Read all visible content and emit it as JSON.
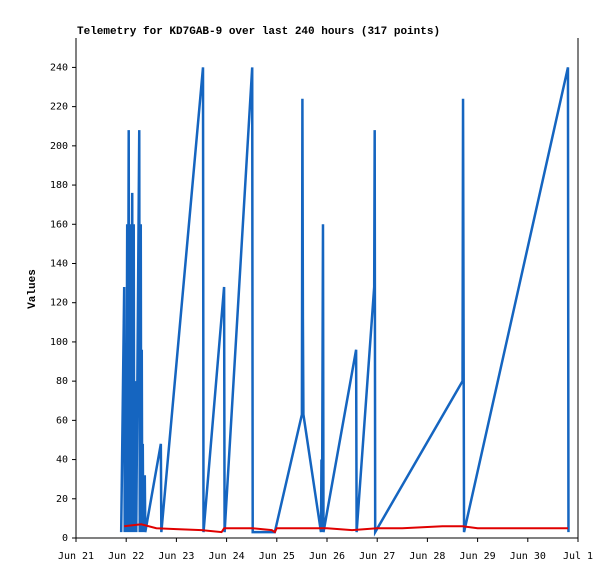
{
  "chart_data": {
    "type": "line",
    "title": "Telemetry for KD7GAB-9 over last 240 hours (317 points)",
    "y_label": "Values",
    "xlim": [
      0,
      10
    ],
    "xticks": [
      {
        "value": 0,
        "label": "Jun 21"
      },
      {
        "value": 1,
        "label": "Jun 22"
      },
      {
        "value": 2,
        "label": "Jun 23"
      },
      {
        "value": 3,
        "label": "Jun 24"
      },
      {
        "value": 4,
        "label": "Jun 25"
      },
      {
        "value": 5,
        "label": "Jun 26"
      },
      {
        "value": 6,
        "label": "Jun 27"
      },
      {
        "value": 7,
        "label": "Jun 28"
      },
      {
        "value": 8,
        "label": "Jun 29"
      },
      {
        "value": 9,
        "label": "Jun 30"
      },
      {
        "value": 10,
        "label": "Jul 1"
      }
    ],
    "ylim": [
      0,
      255
    ],
    "yticks": [
      0,
      20,
      40,
      60,
      80,
      100,
      120,
      140,
      160,
      180,
      200,
      220,
      240
    ],
    "series": [
      {
        "color": "#1565c0",
        "x": [
          0.9,
          0.96,
          0.97,
          0.99,
          1.0,
          1.02,
          1.03,
          1.05,
          1.06,
          1.09,
          1.1,
          1.12,
          1.13,
          1.15,
          1.16,
          1.19,
          1.2,
          1.26,
          1.27,
          1.29,
          1.3,
          1.31,
          1.32,
          1.33,
          1.34,
          1.37,
          1.38,
          1.69,
          1.7,
          2.53,
          2.54,
          2.95,
          2.96,
          3.51,
          3.52,
          3.96,
          4.5,
          4.51,
          4.52,
          4.53,
          4.88,
          4.89,
          4.9,
          4.92,
          4.93,
          5.58,
          5.59,
          5.94,
          5.95,
          5.96,
          7.7,
          7.71,
          7.72,
          7.73,
          9.8,
          9.81
        ],
        "values": [
          3,
          128,
          3,
          80,
          3,
          160,
          3,
          208,
          3,
          160,
          3,
          176,
          3,
          160,
          3,
          80,
          3,
          208,
          3,
          160,
          3,
          96,
          3,
          48,
          3,
          32,
          3,
          48,
          3,
          240,
          3,
          128,
          3,
          240,
          3,
          3,
          63,
          224,
          112,
          63,
          3,
          40,
          3,
          160,
          3,
          96,
          3,
          128,
          208,
          3,
          80,
          224,
          112,
          3,
          240,
          3
        ]
      },
      {
        "color": "#e00000",
        "x": [
          0.96,
          1.3,
          1.6,
          2.0,
          2.5,
          2.9,
          2.95,
          3.5,
          3.9,
          3.96,
          4.0,
          5.0,
          5.5,
          6.0,
          6.5,
          7.3,
          7.7,
          8.0,
          9.8
        ],
        "values": [
          6,
          7,
          5,
          4.5,
          4,
          3,
          5,
          5,
          4,
          3,
          5,
          5,
          4,
          5,
          5,
          6,
          6,
          5,
          5
        ]
      }
    ]
  }
}
